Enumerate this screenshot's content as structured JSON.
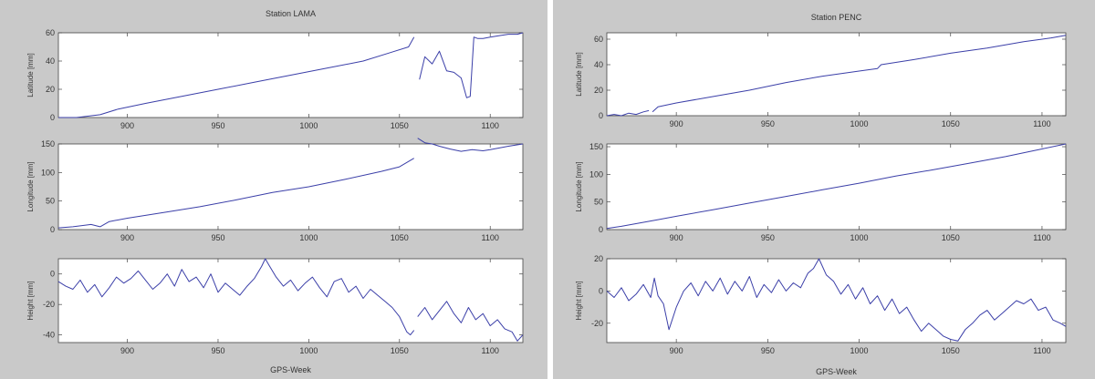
{
  "chart_data": [
    {
      "type": "line",
      "title": "Station LAMA",
      "xlabel": "GPS-Week",
      "xlim": [
        862,
        1118
      ],
      "xticks": [
        900,
        950,
        1000,
        1050,
        1100
      ],
      "subplots": [
        {
          "ylabel": "Latitude [mm]",
          "ylim": [
            0,
            60
          ],
          "yticks": [
            0,
            20,
            40,
            60
          ],
          "series": [
            {
              "segments": [
                {
                  "x": [
                    862,
                    872,
                    885,
                    895,
                    910,
                    930,
                    950,
                    970,
                    990,
                    1010,
                    1030,
                    1045,
                    1055,
                    1058
                  ],
                  "y": [
                    0,
                    0,
                    2,
                    6,
                    10,
                    15,
                    20,
                    25,
                    30,
                    35,
                    40,
                    46,
                    50,
                    57
                  ]
                },
                {
                  "x": [
                    1061,
                    1064,
                    1068,
                    1072,
                    1076,
                    1080,
                    1084,
                    1087,
                    1089,
                    1091,
                    1093,
                    1096,
                    1100,
                    1105,
                    1110,
                    1115,
                    1118
                  ],
                  "y": [
                    27,
                    43,
                    38,
                    47,
                    33,
                    32,
                    28,
                    14,
                    15,
                    57,
                    56,
                    56,
                    57,
                    58,
                    59,
                    59,
                    60
                  ]
                }
              ]
            }
          ]
        },
        {
          "ylabel": "Longitude [mm]",
          "ylim": [
            0,
            150
          ],
          "yticks": [
            0,
            50,
            100,
            150
          ],
          "series": [
            {
              "segments": [
                {
                  "x": [
                    862,
                    870,
                    880,
                    885,
                    890,
                    900,
                    920,
                    940,
                    960,
                    980,
                    1000,
                    1020,
                    1040,
                    1050,
                    1058
                  ],
                  "y": [
                    3,
                    5,
                    9,
                    5,
                    14,
                    20,
                    30,
                    40,
                    52,
                    65,
                    75,
                    88,
                    102,
                    110,
                    125
                  ]
                },
                {
                  "x": [
                    1060,
                    1064,
                    1068,
                    1072,
                    1078,
                    1084,
                    1090,
                    1096,
                    1100,
                    1105,
                    1110,
                    1118
                  ],
                  "y": [
                    160,
                    152,
                    150,
                    146,
                    141,
                    137,
                    140,
                    138,
                    140,
                    143,
                    146,
                    150
                  ]
                }
              ]
            }
          ]
        },
        {
          "ylabel": "Height [mm]",
          "ylim": [
            -45,
            10
          ],
          "yticks": [
            -40,
            -20,
            0
          ],
          "series": [
            {
              "segments": [
                {
                  "x": [
                    862,
                    866,
                    870,
                    874,
                    878,
                    882,
                    886,
                    890,
                    894,
                    898,
                    902,
                    906,
                    910,
                    914,
                    918,
                    922,
                    926,
                    930,
                    934,
                    938,
                    942,
                    946,
                    950,
                    954,
                    958,
                    962,
                    966,
                    970,
                    974,
                    976,
                    978,
                    982,
                    986,
                    990,
                    994,
                    998,
                    1002,
                    1006,
                    1010,
                    1014,
                    1018,
                    1022,
                    1026,
                    1030,
                    1034,
                    1038,
                    1042,
                    1046,
                    1050,
                    1054,
                    1056,
                    1058
                  ],
                  "y": [
                    -5,
                    -8,
                    -10,
                    -4,
                    -12,
                    -7,
                    -15,
                    -9,
                    -2,
                    -6,
                    -3,
                    2,
                    -4,
                    -10,
                    -6,
                    0,
                    -8,
                    3,
                    -5,
                    -2,
                    -9,
                    0,
                    -12,
                    -6,
                    -10,
                    -14,
                    -8,
                    -3,
                    5,
                    10,
                    6,
                    -2,
                    -8,
                    -4,
                    -11,
                    -6,
                    -2,
                    -9,
                    -15,
                    -5,
                    -3,
                    -12,
                    -8,
                    -16,
                    -10,
                    -14,
                    -18,
                    -22,
                    -28,
                    -38,
                    -40,
                    -37
                  ]
                },
                {
                  "x": [
                    1060,
                    1064,
                    1068,
                    1072,
                    1076,
                    1080,
                    1084,
                    1088,
                    1092,
                    1096,
                    1100,
                    1104,
                    1108,
                    1112,
                    1115,
                    1118
                  ],
                  "y": [
                    -28,
                    -22,
                    -30,
                    -24,
                    -18,
                    -26,
                    -32,
                    -22,
                    -30,
                    -26,
                    -34,
                    -30,
                    -36,
                    -38,
                    -44,
                    -40
                  ]
                }
              ]
            }
          ]
        }
      ]
    },
    {
      "type": "line",
      "title": "Station PENC",
      "xlabel": "GPS-Week",
      "xlim": [
        862,
        1113
      ],
      "xticks": [
        900,
        950,
        1000,
        1050,
        1100
      ],
      "subplots": [
        {
          "ylabel": "Latitude [mm]",
          "ylim": [
            0,
            65
          ],
          "yticks": [
            0,
            20,
            40,
            60
          ],
          "series": [
            {
              "segments": [
                {
                  "x": [
                    862,
                    866,
                    870,
                    874,
                    878,
                    882,
                    885
                  ],
                  "y": [
                    0,
                    1,
                    0,
                    2,
                    1,
                    3,
                    4
                  ]
                },
                {
                  "x": [
                    887,
                    890,
                    900,
                    920,
                    940,
                    960,
                    980,
                    1000,
                    1010,
                    1012,
                    1030,
                    1050,
                    1070,
                    1090,
                    1105,
                    1113
                  ],
                  "y": [
                    3,
                    7,
                    10,
                    15,
                    20,
                    26,
                    31,
                    35,
                    37,
                    40,
                    44,
                    49,
                    53,
                    58,
                    61,
                    63
                  ]
                }
              ]
            }
          ]
        },
        {
          "ylabel": "Longitude [mm]",
          "ylim": [
            0,
            155
          ],
          "yticks": [
            0,
            50,
            100,
            150
          ],
          "series": [
            {
              "segments": [
                {
                  "x": [
                    862,
                    870,
                    880,
                    890,
                    900,
                    920,
                    940,
                    960,
                    980,
                    1000,
                    1020,
                    1040,
                    1060,
                    1080,
                    1100,
                    1113
                  ],
                  "y": [
                    2,
                    6,
                    12,
                    18,
                    24,
                    36,
                    48,
                    60,
                    72,
                    84,
                    97,
                    108,
                    120,
                    132,
                    146,
                    155
                  ]
                }
              ]
            }
          ]
        },
        {
          "ylabel": "Height [mm]",
          "ylim": [
            -32,
            20
          ],
          "yticks": [
            -20,
            0,
            20
          ],
          "series": [
            {
              "segments": [
                {
                  "x": [
                    862,
                    866,
                    870,
                    874,
                    878,
                    882,
                    886,
                    888,
                    890,
                    893,
                    896,
                    900,
                    904,
                    908,
                    912,
                    916,
                    920,
                    924,
                    928,
                    932,
                    936,
                    940,
                    944,
                    948,
                    952,
                    956,
                    960,
                    964,
                    968,
                    972,
                    975,
                    978,
                    982,
                    986,
                    990,
                    994,
                    998,
                    1002,
                    1006,
                    1010,
                    1014,
                    1018,
                    1022,
                    1026,
                    1030,
                    1034,
                    1038,
                    1042,
                    1046,
                    1050,
                    1054,
                    1058,
                    1062,
                    1066,
                    1070,
                    1074,
                    1078,
                    1082,
                    1086,
                    1090,
                    1094,
                    1098,
                    1102,
                    1106,
                    1110,
                    1113
                  ],
                  "y": [
                    0,
                    -4,
                    2,
                    -6,
                    -2,
                    4,
                    -4,
                    8,
                    -3,
                    -8,
                    -24,
                    -10,
                    0,
                    5,
                    -3,
                    6,
                    0,
                    8,
                    -2,
                    6,
                    0,
                    9,
                    -4,
                    4,
                    -1,
                    7,
                    0,
                    5,
                    2,
                    11,
                    14,
                    20,
                    10,
                    6,
                    -2,
                    4,
                    -5,
                    2,
                    -8,
                    -3,
                    -12,
                    -5,
                    -14,
                    -10,
                    -18,
                    -25,
                    -20,
                    -24,
                    -28,
                    -30,
                    -31,
                    -24,
                    -20,
                    -15,
                    -12,
                    -18,
                    -14,
                    -10,
                    -6,
                    -8,
                    -5,
                    -12,
                    -10,
                    -18,
                    -20,
                    -22
                  ]
                }
              ]
            }
          ]
        }
      ]
    }
  ]
}
